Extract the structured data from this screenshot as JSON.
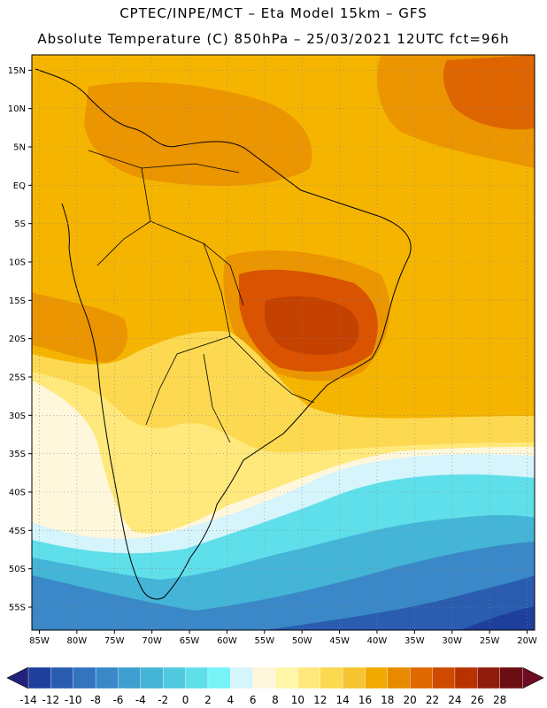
{
  "header": {
    "line1": "CPTEC/INPE/MCT –  Eta Model 15km – GFS",
    "line2": "Absolute Temperature (C) 850hPa – 25/03/2021 12UTC fct=96h"
  },
  "map": {
    "lon_range": [
      -86,
      -19
    ],
    "lat_range": [
      -58,
      17
    ],
    "x_ticks": [
      "85W",
      "80W",
      "75W",
      "70W",
      "65W",
      "60W",
      "55W",
      "50W",
      "45W",
      "40W",
      "35W",
      "30W",
      "25W",
      "20W"
    ],
    "y_ticks": [
      "15N",
      "10N",
      "5N",
      "EQ",
      "5S",
      "10S",
      "15S",
      "20S",
      "25S",
      "30S",
      "35S",
      "40S",
      "45S",
      "50S",
      "55S"
    ],
    "gridlines": "dotted",
    "background_color": "#f5b400"
  },
  "colorbar": {
    "labels": [
      "-14",
      "-12",
      "-10",
      "-8",
      "-6",
      "-4",
      "-2",
      "0",
      "2",
      "4",
      "6",
      "8",
      "10",
      "12",
      "14",
      "16",
      "18",
      "20",
      "22",
      "24",
      "26",
      "28"
    ],
    "colors": [
      "#1f3f9c",
      "#2a5cb0",
      "#3274bd",
      "#3a88c7",
      "#3e9ecf",
      "#44b4d7",
      "#50cadf",
      "#5fdfea",
      "#76f3f7",
      "#d5f4fb",
      "#fff7dc",
      "#fff6a8",
      "#ffe97c",
      "#fcd950",
      "#f5c431",
      "#f2a900",
      "#e88a00",
      "#e06800",
      "#cf4a00",
      "#b83200",
      "#8f1c0c",
      "#6b0e14"
    ],
    "left_arrow_color": "#22237a",
    "right_arrow_color": "#6e0c24"
  }
}
